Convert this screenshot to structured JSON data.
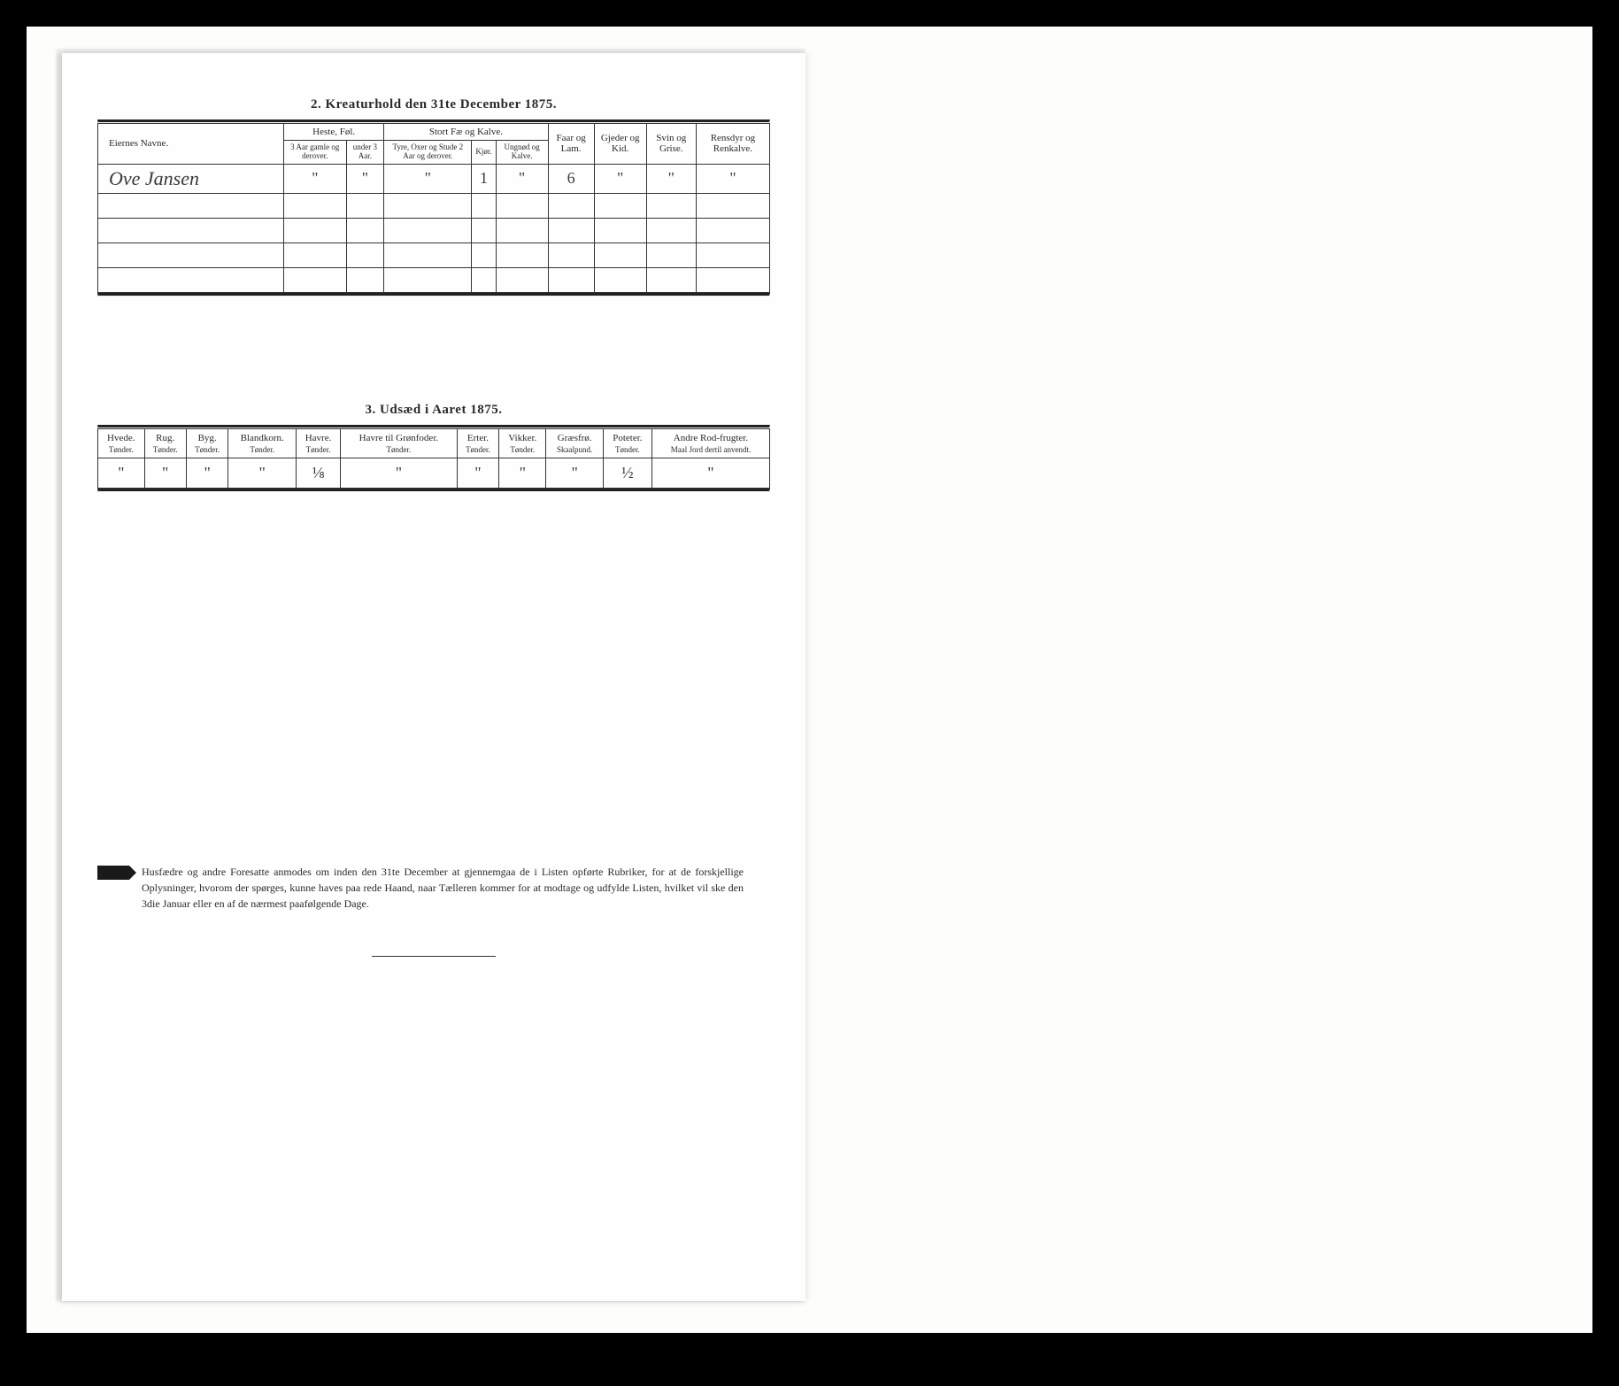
{
  "colors": {
    "background": "#000000",
    "scan": "#fdfdfb",
    "page": "#fefefe",
    "ink": "#2a2a2a",
    "rule": "#222222"
  },
  "section1": {
    "title": "2.   Kreaturhold den 31te December 1875.",
    "headers": {
      "name": "Eiernes Navne.",
      "heste": "Heste, Føl.",
      "heste_sub1": "3 Aar gamle og derover.",
      "heste_sub2": "under 3 Aar.",
      "stort": "Stort Fæ og Kalve.",
      "stort_sub1": "Tyre, Oxer og Stude 2 Aar og derover.",
      "stort_sub2": "Kjør.",
      "stort_sub3": "Ungnød og Kalve.",
      "faar": "Faar og Lam.",
      "gjeder": "Gjeder og Kid.",
      "svin": "Svin og Grise.",
      "rensdyr": "Rensdyr og Renkalve."
    },
    "row": {
      "name": "Ove Jansen",
      "heste1": "\"",
      "heste2": "\"",
      "stort1": "\"",
      "stort2": "1",
      "stort3": "\"",
      "faar": "6",
      "gjeder": "\"",
      "svin": "\"",
      "rensdyr": "\""
    }
  },
  "section2": {
    "title": "3.   Udsæd i Aaret 1875.",
    "columns": [
      {
        "h": "Hvede.",
        "s": "Tønder."
      },
      {
        "h": "Rug.",
        "s": "Tønder."
      },
      {
        "h": "Byg.",
        "s": "Tønder."
      },
      {
        "h": "Blandkorn.",
        "s": "Tønder."
      },
      {
        "h": "Havre.",
        "s": "Tønder."
      },
      {
        "h": "Havre til Grønfoder.",
        "s": "Tønder."
      },
      {
        "h": "Erter.",
        "s": "Tønder."
      },
      {
        "h": "Vikker.",
        "s": "Tønder."
      },
      {
        "h": "Græsfrø.",
        "s": "Skaalpund."
      },
      {
        "h": "Poteter.",
        "s": "Tønder."
      },
      {
        "h": "Andre Rod-frugter.",
        "s": "Maal Jord dertil anvendt."
      }
    ],
    "row": [
      "\"",
      "\"",
      "\"",
      "\"",
      "⅛",
      "\"",
      "\"",
      "\"",
      "\"",
      "½",
      "\""
    ]
  },
  "footer": "Husfædre og andre Foresatte anmodes om inden den 31te December at gjennemgaa de i Listen opførte Rubriker, for at de forskjellige Oplysninger, hvorom der spørges, kunne haves paa rede Haand, naar Tælleren kommer for at modtage og udfylde Listen, hvilket vil ske den 3die Januar eller en af de nærmest paafølgende Dage."
}
